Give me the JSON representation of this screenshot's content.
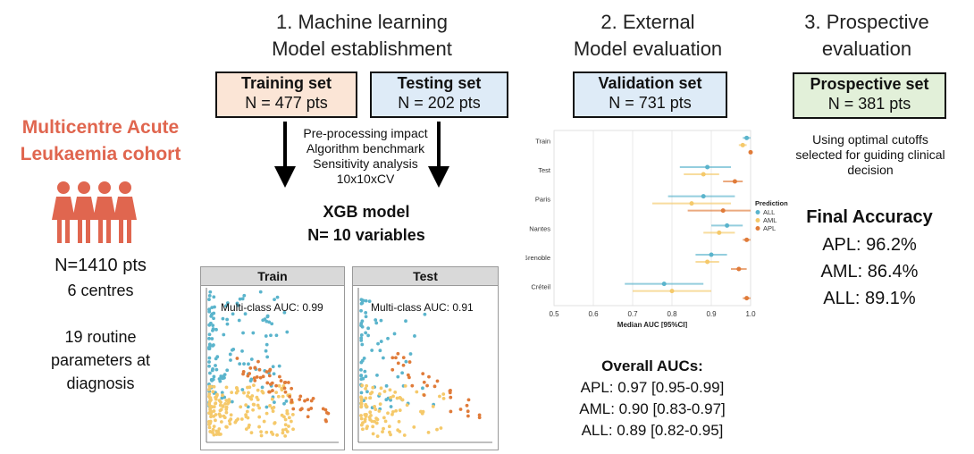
{
  "cohort": {
    "title_line1": "Multicentre Acute",
    "title_line2": "Leukaemia cohort",
    "n": "N=1410 pts",
    "centres": "6 centres",
    "params_line1": "19 routine",
    "params_line2": "parameters at",
    "params_line3": "diagnosis",
    "icon": "people-group-icon",
    "color": "#e0664f"
  },
  "section1": {
    "heading_line1": "1.   Machine learning",
    "heading_line2": "Model establishment",
    "training": {
      "title": "Training set",
      "n": "N = 477 pts",
      "color": "#fbe5d6"
    },
    "testing": {
      "title": "Testing set",
      "n": "N = 202 pts",
      "color": "#deebf7"
    },
    "steps": [
      "Pre-processing impact",
      "Algorithm benchmark",
      "Sensitivity analysis",
      "10x10xCV"
    ],
    "model_line1": "XGB model",
    "model_line2": "N= 10 variables",
    "train_panel": {
      "title": "Train",
      "auc": "Multi-class AUC: 0.99"
    },
    "test_panel": {
      "title": "Test",
      "auc": "Multi-class AUC: 0.91"
    }
  },
  "section2": {
    "heading_line1": "2. External",
    "heading_line2": "Model evaluation",
    "validation": {
      "title": "Validation set",
      "n": "N = 731 pts",
      "color": "#deebf7"
    },
    "overall_title": "Overall AUCs:",
    "overall": [
      "APL:  0.97 [0.95-0.99]",
      "AML: 0.90 [0.83-0.97]",
      "ALL: 0.89  [0.82-0.95]"
    ]
  },
  "section3": {
    "heading_line1": "3. Prospective",
    "heading_line2": "evaluation",
    "prospective": {
      "title": "Prospective set",
      "n": "N = 381 pts",
      "color": "#e2f0d9"
    },
    "note_line1": "Using optimal cutoffs",
    "note_line2": "selected for guiding clinical",
    "note_line3": "decision",
    "accuracy_title": "Final Accuracy",
    "accuracy": [
      "APL: 96.2%",
      "AML: 86.4%",
      "ALL: 89.1%"
    ]
  },
  "chart_data": {
    "type": "forest",
    "title": "",
    "xlabel": "Median AUC [95%CI]",
    "ylabel": "",
    "xlim": [
      0.5,
      1.0
    ],
    "xticks": [
      "0.5",
      "0.6",
      "0.7",
      "0.8",
      "0.9",
      "1.0"
    ],
    "categories": [
      "Train",
      "Test",
      "Paris",
      "Nantes",
      "Grenoble",
      "Créteil"
    ],
    "legend_title": "Prediction",
    "legend_position": "right",
    "series": [
      {
        "name": "ALL",
        "color": "#5ab4cc",
        "values": [
          0.99,
          0.89,
          0.88,
          0.94,
          0.9,
          0.78
        ],
        "lower": [
          0.98,
          0.82,
          0.79,
          0.9,
          0.86,
          0.68
        ],
        "upper": [
          1.0,
          0.95,
          0.96,
          0.98,
          0.94,
          0.88
        ]
      },
      {
        "name": "AML",
        "color": "#f5c96a",
        "values": [
          0.98,
          0.88,
          0.85,
          0.92,
          0.89,
          0.8
        ],
        "lower": [
          0.97,
          0.83,
          0.75,
          0.88,
          0.86,
          0.7
        ],
        "upper": [
          0.99,
          0.92,
          0.95,
          0.96,
          0.92,
          0.9
        ]
      },
      {
        "name": "APL",
        "color": "#e07b39",
        "values": [
          1.0,
          0.96,
          0.93,
          0.99,
          0.97,
          0.99
        ],
        "lower": [
          1.0,
          0.93,
          0.84,
          0.98,
          0.95,
          0.98
        ],
        "upper": [
          1.0,
          0.98,
          1.0,
          1.0,
          0.99,
          1.0
        ]
      }
    ]
  }
}
